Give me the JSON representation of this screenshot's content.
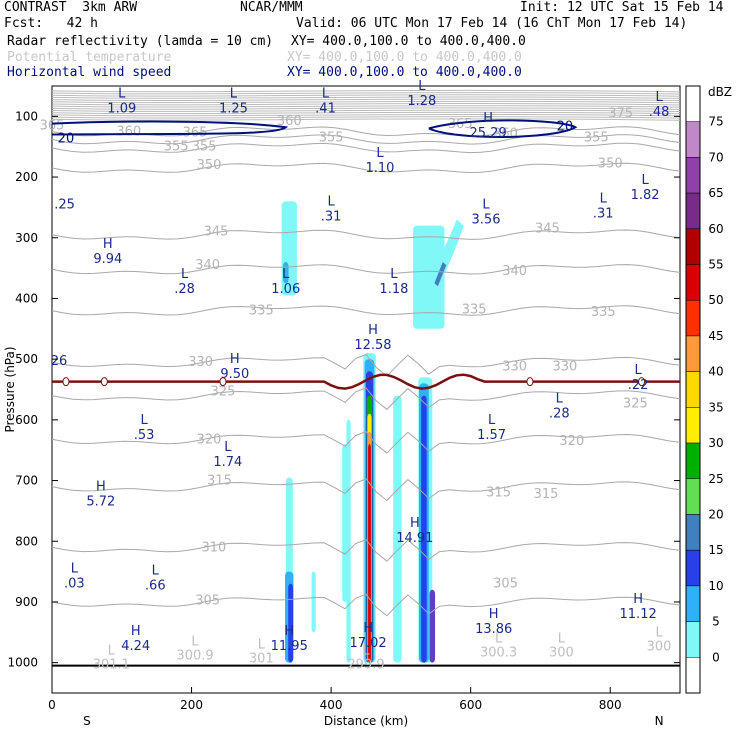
{
  "header": {
    "model": "CONTRAST  3km ARW",
    "fcst": "Fcst:   42 h",
    "center": "NCAR/MMM",
    "init": "Init: 12 UTC Sat 15 Feb 14",
    "valid": "Valid: 06 UTC Mon 17 Feb 14 (16 ChT Mon 17 Feb 14)",
    "fields": [
      {
        "label": "Radar reflectivity (lamda = 10 cm)",
        "xy": "XY= 400.0,100.0 to 400.0,400.0",
        "color": "#000000"
      },
      {
        "label": "Potential temperature",
        "xy": "XY= 400.0,100.0 to 400.0,400.0",
        "color": "#c8c8c8"
      },
      {
        "label": "Horizontal wind speed",
        "xy": "XY= 400.0,100.0 to 400.0,400.0",
        "color": "#00107a"
      }
    ]
  },
  "chart_data": {
    "type": "cross-section",
    "xlabel": "Distance (km)",
    "ylabel": "Pressure (hPa)",
    "xlim": [
      0,
      900
    ],
    "ylim": [
      1050,
      50
    ],
    "xticks": [
      0,
      200,
      400,
      600,
      800
    ],
    "yticks": [
      100,
      200,
      300,
      400,
      500,
      600,
      700,
      800,
      900,
      1000
    ],
    "x_end_labels": {
      "left": "S",
      "right": "N"
    },
    "colorbar": {
      "unit": "dBZ",
      "levels": [
        75,
        70,
        65,
        60,
        55,
        50,
        45,
        40,
        35,
        30,
        25,
        20,
        15,
        10,
        5,
        0
      ],
      "colors": [
        "#ffffff",
        "#c088c8",
        "#9040a8",
        "#7a2a8a",
        "#b00000",
        "#d80000",
        "#ff3000",
        "#ff9a3c",
        "#ffd800",
        "#ffee00",
        "#00b000",
        "#60e050",
        "#4080c0",
        "#2840e8",
        "#30b0f8",
        "#80f8f8",
        "#ffffff"
      ]
    },
    "theta_labels": [
      {
        "x": 0,
        "p": 115,
        "t": "365"
      },
      {
        "x": 110,
        "p": 125,
        "t": "360"
      },
      {
        "x": 205,
        "p": 127,
        "t": "365"
      },
      {
        "x": 340,
        "p": 108,
        "t": "360"
      },
      {
        "x": 400,
        "p": 135,
        "t": "355"
      },
      {
        "x": 585,
        "p": 113,
        "t": "365"
      },
      {
        "x": 650,
        "p": 128,
        "t": "360"
      },
      {
        "x": 780,
        "p": 135,
        "t": "355"
      },
      {
        "x": 815,
        "p": 95,
        "t": "375"
      },
      {
        "x": 178,
        "p": 150,
        "t": "355"
      },
      {
        "x": 218,
        "p": 150,
        "t": "355"
      },
      {
        "x": 225,
        "p": 180,
        "t": "350"
      },
      {
        "x": 800,
        "p": 178,
        "t": "350"
      },
      {
        "x": 235,
        "p": 290,
        "t": "345"
      },
      {
        "x": 710,
        "p": 285,
        "t": "345"
      },
      {
        "x": 223,
        "p": 345,
        "t": "340"
      },
      {
        "x": 663,
        "p": 355,
        "t": "340"
      },
      {
        "x": 300,
        "p": 420,
        "t": "335"
      },
      {
        "x": 605,
        "p": 418,
        "t": "335"
      },
      {
        "x": 790,
        "p": 422,
        "t": "335"
      },
      {
        "x": 213,
        "p": 505,
        "t": "330"
      },
      {
        "x": 663,
        "p": 512,
        "t": "330"
      },
      {
        "x": 735,
        "p": 512,
        "t": "330"
      },
      {
        "x": 245,
        "p": 553,
        "t": "325"
      },
      {
        "x": 836,
        "p": 573,
        "t": "325"
      },
      {
        "x": 225,
        "p": 632,
        "t": "320"
      },
      {
        "x": 745,
        "p": 635,
        "t": "320"
      },
      {
        "x": 240,
        "p": 700,
        "t": "315"
      },
      {
        "x": 640,
        "p": 720,
        "t": "315"
      },
      {
        "x": 708,
        "p": 722,
        "t": "315"
      },
      {
        "x": 232,
        "p": 810,
        "t": "310"
      },
      {
        "x": 223,
        "p": 898,
        "t": "305"
      },
      {
        "x": 650,
        "p": 870,
        "t": "305"
      }
    ],
    "wind_labels": [
      {
        "x": 100,
        "p": 72,
        "letter": "L",
        "v": "1.09"
      },
      {
        "x": 260,
        "p": 72,
        "letter": "L",
        "v": "1.25"
      },
      {
        "x": 392,
        "p": 72,
        "letter": "L",
        "v": ".41"
      },
      {
        "x": 530,
        "p": 60,
        "letter": "L",
        "v": "1.28"
      },
      {
        "x": 870,
        "p": 78,
        "letter": "L",
        "v": ".48"
      },
      {
        "x": 625,
        "p": 113,
        "letter": "H",
        "v": "25.29"
      },
      {
        "x": 470,
        "p": 170,
        "letter": "L",
        "v": "1.10"
      },
      {
        "x": 18,
        "p": 230,
        "letter": "",
        "v": ".25"
      },
      {
        "x": 850,
        "p": 215,
        "letter": "L",
        "v": "1.82"
      },
      {
        "x": 400,
        "p": 250,
        "letter": "L",
        "v": ".31"
      },
      {
        "x": 622,
        "p": 255,
        "letter": "L",
        "v": "3.56"
      },
      {
        "x": 790,
        "p": 245,
        "letter": "L",
        "v": ".31"
      },
      {
        "x": 80,
        "p": 320,
        "letter": "H",
        "v": "9.94"
      },
      {
        "x": 190,
        "p": 370,
        "letter": "L",
        "v": ".28"
      },
      {
        "x": 335,
        "p": 370,
        "letter": "L",
        "v": "1.06"
      },
      {
        "x": 490,
        "p": 370,
        "letter": "L",
        "v": "1.18"
      },
      {
        "x": 10,
        "p": 488,
        "letter": "",
        "v": "26"
      },
      {
        "x": 460,
        "p": 462,
        "letter": "H",
        "v": "12.58"
      },
      {
        "x": 262,
        "p": 510,
        "letter": "H",
        "v": "9.50"
      },
      {
        "x": 840,
        "p": 528,
        "letter": "L",
        "v": ".22"
      },
      {
        "x": 727,
        "p": 575,
        "letter": "L",
        "v": ".28"
      },
      {
        "x": 132,
        "p": 610,
        "letter": "L",
        "v": ".53"
      },
      {
        "x": 630,
        "p": 610,
        "letter": "L",
        "v": "1.57"
      },
      {
        "x": 252,
        "p": 655,
        "letter": "L",
        "v": "1.74"
      },
      {
        "x": 70,
        "p": 720,
        "letter": "H",
        "v": "5.72"
      },
      {
        "x": 520,
        "p": 780,
        "letter": "H",
        "v": "14.91"
      },
      {
        "x": 32,
        "p": 855,
        "letter": "L",
        "v": ".03"
      },
      {
        "x": 148,
        "p": 858,
        "letter": "L",
        "v": ".66"
      },
      {
        "x": 840,
        "p": 905,
        "letter": "H",
        "v": "11.12"
      },
      {
        "x": 120,
        "p": 958,
        "letter": "H",
        "v": "4.24"
      },
      {
        "x": 340,
        "p": 958,
        "letter": "H",
        "v": "11.95"
      },
      {
        "x": 453,
        "p": 953,
        "letter": "H",
        "v": "17.02"
      },
      {
        "x": 633,
        "p": 930,
        "letter": "H",
        "v": "13.86"
      }
    ],
    "surface_theta_labels": [
      {
        "x": 85,
        "p": 990,
        "letter": "L",
        "v": "301.1"
      },
      {
        "x": 205,
        "p": 975,
        "letter": "L",
        "v": "300.9"
      },
      {
        "x": 300,
        "p": 980,
        "letter": "L",
        "v": "301"
      },
      {
        "x": 450,
        "p": 990,
        "letter": "L",
        "v": "299.9"
      },
      {
        "x": 640,
        "p": 970,
        "letter": "L",
        "v": "300.3"
      },
      {
        "x": 730,
        "p": 970,
        "letter": "L",
        "v": "300"
      },
      {
        "x": 870,
        "p": 960,
        "letter": "L",
        "v": "300"
      }
    ],
    "wind_contour_labels": [
      {
        "x": 20,
        "p": 135,
        "t": "20"
      },
      {
        "x": 735,
        "p": 115,
        "t": "20"
      }
    ]
  }
}
